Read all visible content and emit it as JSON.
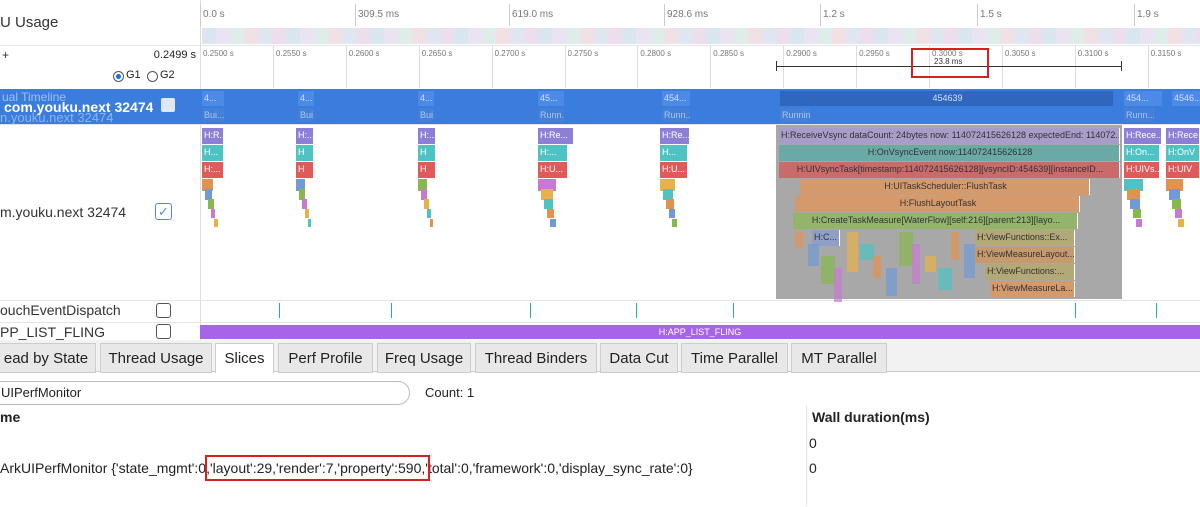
{
  "cpu_usage_track": {
    "label": "U Usage",
    "time_ticks": [
      "0.0 s",
      "309.5 ms",
      "619.0 ms",
      "928.6 ms",
      "1.2 s",
      "1.5 s",
      "1.9 s"
    ]
  },
  "detail_ruler": {
    "plus": "+",
    "left_time": "0.2499 s",
    "radio_options": [
      "G1",
      "G2"
    ],
    "time_ticks": [
      "0.2500 s",
      "0.2550 s",
      "0.2600 s",
      "0.2650 s",
      "0.2700 s",
      "0.2750 s",
      "0.2800 s",
      "0.2850 s",
      "0.2900 s",
      "0.2950 s",
      "0.3000 s",
      "0.3050 s",
      "0.3100 s",
      "0.3150 s"
    ],
    "measure_duration": "23.8 ms"
  },
  "timeline_track": {
    "labels": [
      "ual Timeline",
      "com.youku.next 32474",
      "n.youku.next 32474"
    ],
    "frames": [
      "4...",
      "4...",
      "4...",
      "45...",
      "454...",
      "454639",
      "454...",
      "4546..."
    ],
    "subframes": [
      "Bui...",
      "Bui...",
      "Bui...",
      "Runn...",
      "Runn...",
      "Running",
      "Runn..."
    ]
  },
  "thread_track": {
    "label": "m.youku.next 32474",
    "slices": [
      "H:R...",
      "H...",
      "H:...",
      "H:...",
      "H",
      "H",
      "H:...",
      "H",
      "H",
      "H:Re...",
      "H:...",
      "H:U...",
      "H:Re...",
      "H...",
      "H:U...",
      "H:ReceiveVsync dataCount: 24bytes now: 114072415626128 expectedEnd: 114072...",
      "H:OnVsyncEvent now:114072415626128",
      "H:UIVsyncTask[timestamp:114072415626128][vsyncID:454639][instanceID...",
      "H:UITaskScheduler::FlushTask",
      "H:FlushLayoutTask",
      "H:CreateTaskMeasure[WaterFlow][self:216][parent:213][layo...",
      "H:C...",
      "H:ViewFunctions::Ex...",
      "H:ViewMeasureLayout...",
      "H:ViewFunctions:...",
      "H:ViewMeasureLa...",
      "H:Rece...",
      "H:On...",
      "H:UIVs...",
      "H:Rece",
      "H:OnV",
      "H:UIV"
    ]
  },
  "touch_track": {
    "label": "ouchEventDispatch"
  },
  "fling_track": {
    "label": "PP_LIST_FLING",
    "slice": "H:APP_LIST_FLING"
  },
  "tabs": [
    "ead by State",
    "Thread Usage",
    "Slices",
    "Perf Profile",
    "Freq Usage",
    "Thread Binders",
    "Data Cut",
    "Time Parallel",
    "MT Parallel"
  ],
  "search": {
    "value": "UIPerfMonitor",
    "count": "Count: 1"
  },
  "table": {
    "columns": [
      "me",
      "Wall duration(ms)"
    ],
    "rows": [
      {
        "duration": "0"
      },
      {
        "name_parts": [
          "ArkUIPerfMonitor {'state_mgmt':0,",
          "'layout':29,'render':7,'property':590,",
          "'total':0,'framework':0,'display_sync_rate':0}"
        ],
        "duration": "0"
      }
    ]
  }
}
